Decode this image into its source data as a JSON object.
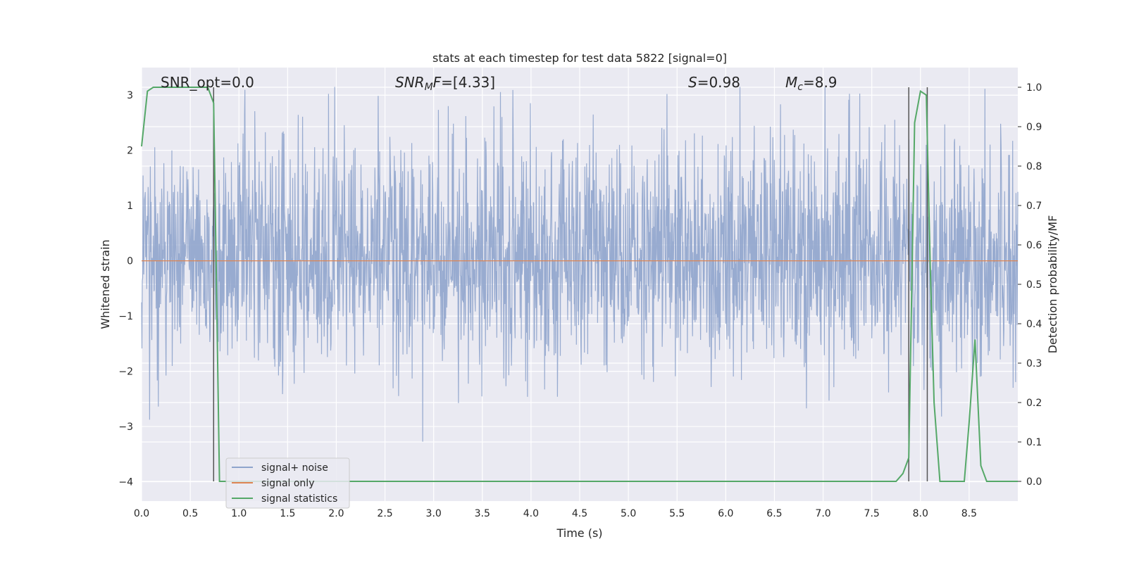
{
  "chart_data": {
    "type": "line",
    "title": "stats at each timestep for test data 5822 [signal=0]",
    "xlabel": "Time (s)",
    "ylabel": "Whitened strain",
    "ylabel_right": "Detection probability/MF",
    "xlim": [
      0,
      9.0
    ],
    "ylim": [
      -4.35,
      3.5
    ],
    "ylim_right": [
      -0.05,
      1.05
    ],
    "x_ticks": [
      "0.0",
      "0.5",
      "1.0",
      "1.5",
      "2.0",
      "2.5",
      "3.0",
      "3.5",
      "4.0",
      "4.5",
      "5.0",
      "5.5",
      "6.0",
      "6.5",
      "7.0",
      "7.5",
      "8.0",
      "8.5"
    ],
    "y_ticks": [
      "3",
      "2",
      "1",
      "0",
      "−1",
      "−2",
      "−3",
      "−4"
    ],
    "y_ticks_right": [
      "1.0",
      "0.9",
      "0.8",
      "0.7",
      "0.6",
      "0.5",
      "0.4",
      "0.3",
      "0.2",
      "0.1",
      "0.0"
    ],
    "grid": true,
    "legend_position": "lower-left",
    "annotations": {
      "snr_opt": "SNR_opt=0.0",
      "snr_mf": "=[4.33]",
      "snr_mf_sym": "SNR",
      "snr_mf_sub": "M",
      "snr_mf_tail": "F",
      "s_sym": "S",
      "s_val": "=0.98",
      "mc_sym": "M",
      "mc_sub": "c",
      "mc_val": "=8.9"
    },
    "series": [
      {
        "name": "signal+ noise",
        "color": "#8fa4cc",
        "axis": "left",
        "note": "whitened noise, approx. uniform amplitude between -2.5 and 3.2"
      },
      {
        "name": "signal only",
        "color": "#dd8452",
        "axis": "left",
        "x": [
          0,
          9.0
        ],
        "y": [
          0,
          0
        ]
      },
      {
        "name": "signal statistics",
        "color": "#55a868",
        "axis": "right",
        "x": [
          0.0,
          0.06,
          0.12,
          0.2,
          0.3,
          0.4,
          0.5,
          0.6,
          0.68,
          0.74,
          0.8,
          0.9,
          1.0,
          2.0,
          3.0,
          4.0,
          5.0,
          6.0,
          7.0,
          7.75,
          7.82,
          7.88,
          7.94,
          8.0,
          8.06,
          8.1,
          8.14,
          8.2,
          8.3,
          8.4,
          8.45,
          8.5,
          8.56,
          8.62,
          8.68,
          8.75,
          8.85,
          9.0
        ],
        "y": [
          0.85,
          0.99,
          1.0,
          1.0,
          1.0,
          1.0,
          1.0,
          1.0,
          1.0,
          0.96,
          0.0,
          0.0,
          0.0,
          0.0,
          0.0,
          0.0,
          0.0,
          0.0,
          0.0,
          0.0,
          0.02,
          0.06,
          0.91,
          0.99,
          0.98,
          0.55,
          0.2,
          0.0,
          0.0,
          0.0,
          0.0,
          0.15,
          0.36,
          0.04,
          0.0,
          0.0,
          0.0,
          0.0
        ]
      }
    ],
    "vlines": [
      {
        "x": 0.74,
        "y_right": [
          0.0,
          1.0
        ]
      },
      {
        "x": 7.88,
        "y_right": [
          0.0,
          1.0
        ]
      },
      {
        "x": 8.07,
        "y_right": [
          0.0,
          1.0
        ]
      }
    ]
  }
}
